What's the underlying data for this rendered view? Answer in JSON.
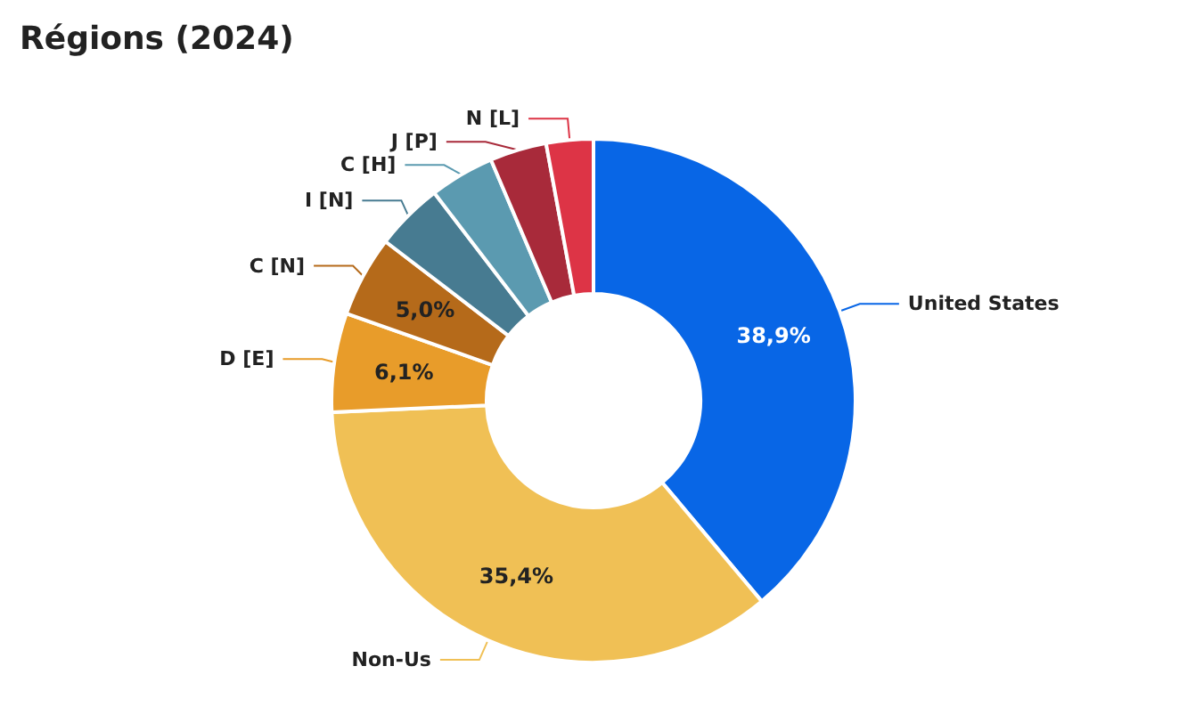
{
  "chart_data": {
    "type": "donut",
    "title": "Régions (2024)",
    "categories": [
      "United States",
      "Non-Us",
      "D [E]",
      "C [N]",
      "I [N]",
      "C [H]",
      "J [P]",
      "N [L]"
    ],
    "values": [
      38.9,
      35.4,
      6.1,
      5.0,
      4.2,
      4.0,
      3.5,
      2.9
    ],
    "colors": [
      "#0866e6",
      "#f0c055",
      "#e89c2a",
      "#b56a1a",
      "#477b91",
      "#5b9ab0",
      "#a82a3a",
      "#dd3446"
    ],
    "value_labels": [
      "38,9%",
      "35,4%",
      "6,1%",
      "5,0%",
      null,
      null,
      null,
      null
    ],
    "legend": false
  }
}
